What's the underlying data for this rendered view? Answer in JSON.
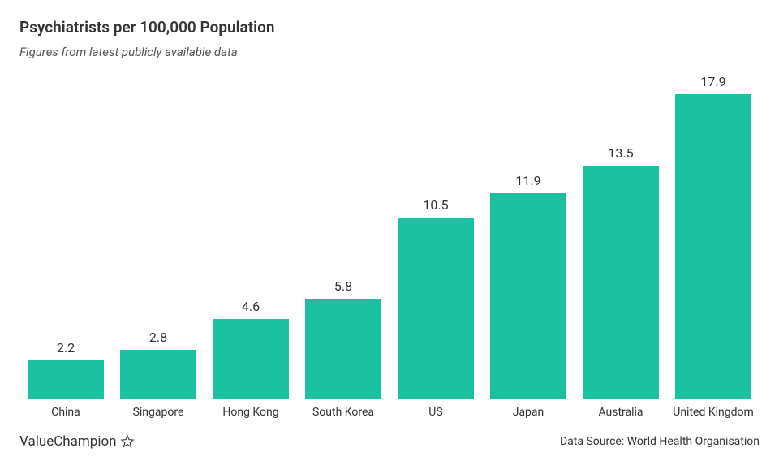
{
  "title": "Psychiatrists per 100,000 Population",
  "subtitle": "Figures from latest publicly available data",
  "chart": {
    "type": "bar",
    "bar_color": "#1bc1a1",
    "bar_width_pct": 82,
    "background_color": "#ffffff",
    "axis_color": "#333333",
    "value_fontsize": 16,
    "label_fontsize": 14,
    "y_max": 18.8,
    "categories": [
      "China",
      "Singapore",
      "Hong Kong",
      "South Korea",
      "US",
      "Japan",
      "Australia",
      "United Kingdom"
    ],
    "values": [
      2.2,
      2.8,
      4.6,
      5.8,
      10.5,
      11.9,
      13.5,
      17.9
    ]
  },
  "brand": "ValueChampion",
  "source": "Data Source: World Health Organisation"
}
